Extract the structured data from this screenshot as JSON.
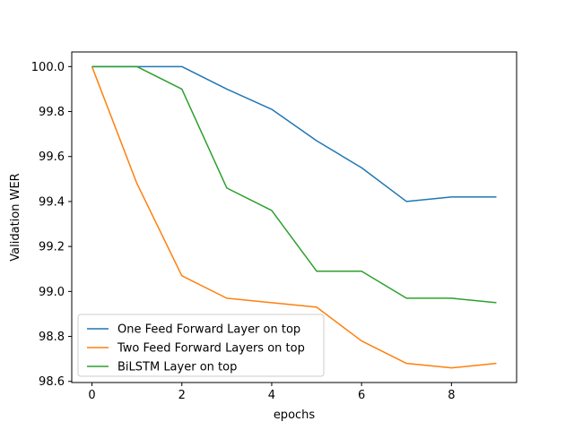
{
  "chart_data": {
    "type": "line",
    "title": "",
    "xlabel": "epochs",
    "ylabel": "Validation WER",
    "x": [
      0,
      1,
      2,
      3,
      4,
      5,
      6,
      7,
      8,
      9
    ],
    "xlim": [
      -0.45,
      9.45
    ],
    "ylim": [
      98.595,
      100.065
    ],
    "xticks": [
      0,
      2,
      4,
      6,
      8
    ],
    "yticks": [
      98.6,
      98.8,
      99.0,
      99.2,
      99.4,
      99.6,
      99.8,
      100.0
    ],
    "grid": false,
    "legend_position": "lower-left",
    "series": [
      {
        "name": "One Feed Forward Layer on top",
        "color": "#1f77b4",
        "values": [
          100.0,
          100.0,
          100.0,
          99.9,
          99.81,
          99.67,
          99.55,
          99.4,
          99.42,
          99.42
        ]
      },
      {
        "name": "Two Feed Forward Layers on top",
        "color": "#ff7f0e",
        "values": [
          100.0,
          99.48,
          99.07,
          98.97,
          98.95,
          98.93,
          98.78,
          98.68,
          98.66,
          98.68
        ]
      },
      {
        "name": "BiLSTM Layer on top",
        "color": "#2ca02c",
        "values": [
          100.0,
          100.0,
          99.9,
          99.46,
          99.36,
          99.09,
          99.09,
          98.97,
          98.97,
          98.95
        ]
      }
    ]
  }
}
